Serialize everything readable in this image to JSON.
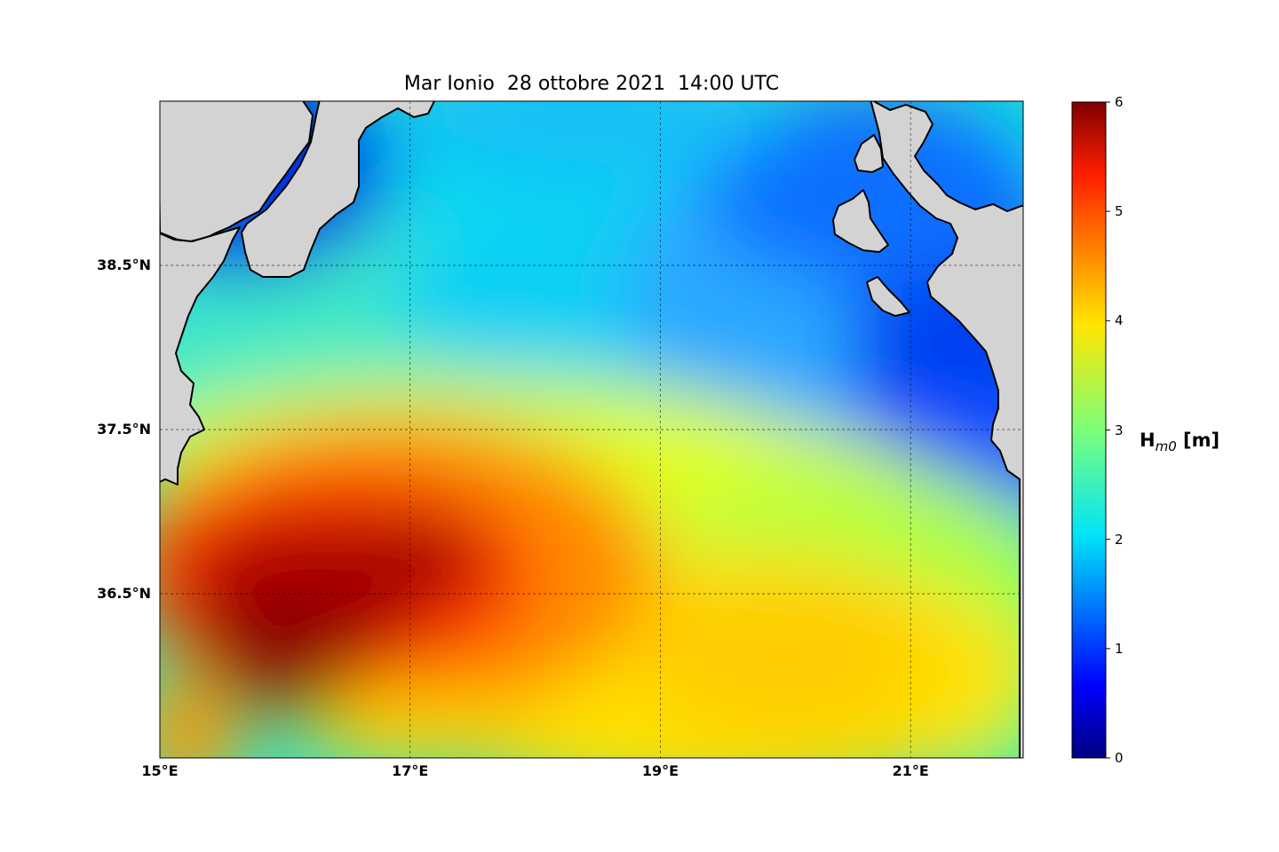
{
  "title": "Mar Ionio  28 ottobre 2021  14:00 UTC",
  "map": {
    "lon_range": [
      15.0,
      21.9
    ],
    "lat_range": [
      35.5,
      39.5
    ],
    "land_color": "#d3d3d3",
    "coastline_color": "#000000",
    "gridlines": true,
    "lat_ticks": [
      {
        "value": 38.5,
        "label": "38.5°N"
      },
      {
        "value": 37.5,
        "label": "37.5°N"
      },
      {
        "value": 36.5,
        "label": "36.5°N"
      }
    ],
    "lon_ticks": [
      {
        "value": 15,
        "label": "15°E"
      },
      {
        "value": 17,
        "label": "17°E"
      },
      {
        "value": 19,
        "label": "19°E"
      },
      {
        "value": 21,
        "label": "21°E"
      }
    ]
  },
  "colorbar": {
    "colormap": "jet",
    "min": 0,
    "max": 6,
    "ticks": [
      "0",
      "1",
      "2",
      "3",
      "4",
      "5",
      "6"
    ],
    "label_main": "H",
    "label_sub": "m0",
    "label_unit": " [m]"
  }
}
